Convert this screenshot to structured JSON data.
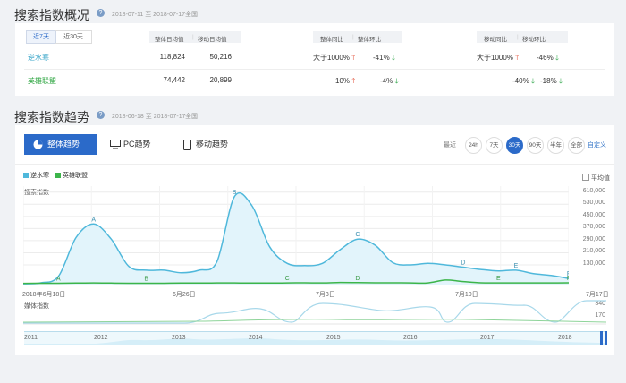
{
  "overview": {
    "title": "搜索指数概况",
    "date_range": "2018-07-11 至 2018-07-17",
    "region": "全国",
    "tabs": [
      "近7天",
      "近30天"
    ],
    "headers": {
      "avg": [
        "整体日均值",
        "移动日均值"
      ],
      "ratio1": [
        "整体同比",
        "整体环比"
      ],
      "ratio2": [
        "移动同比",
        "移动环比"
      ]
    },
    "rows": [
      {
        "name": "逆水寒",
        "name_color": "#3aa6c9",
        "overall_avg": "118,824",
        "mobile_avg": "50,216",
        "overall_yoy": "大于1000%",
        "overall_yoy_dir": "up",
        "overall_qoq": "-41%",
        "overall_qoq_dir": "down",
        "mobile_yoy": "大于1000%",
        "mobile_yoy_dir": "up",
        "mobile_qoq": "-46%",
        "mobile_qoq_dir": "down"
      },
      {
        "name": "英雄联盟",
        "name_color": "#27a33b",
        "overall_avg": "74,442",
        "mobile_avg": "20,899",
        "overall_yoy": "10%",
        "overall_yoy_dir": "up",
        "overall_qoq": "-4%",
        "overall_qoq_dir": "down",
        "mobile_yoy": "-40%",
        "mobile_yoy_dir": "down",
        "mobile_qoq": "-18%",
        "mobile_qoq_dir": "down"
      }
    ]
  },
  "trend": {
    "title": "搜索指数趋势",
    "date_range": "2018-06-18 至 2018-07-17",
    "region": "全国",
    "tabs": [
      "整体趋势",
      "PC趋势",
      "移动趋势"
    ],
    "range_label": "最近",
    "ranges": [
      "24h",
      "7天",
      "30天",
      "90天",
      "半年",
      "全部"
    ],
    "active_range": "30天",
    "custom_label": "自定义",
    "avg_label": "平均值"
  },
  "chart_data": [
    {
      "type": "area",
      "ylabel": "搜索指数",
      "yticks": [
        130000,
        210000,
        290000,
        370000,
        450000,
        530000,
        610000
      ],
      "ytick_labels": [
        "130,000",
        "210,000",
        "290,000",
        "370,000",
        "450,000",
        "530,000",
        "610,000"
      ],
      "ylim": [
        0,
        650000
      ],
      "x_tick_labels": [
        "2018年6月18日",
        "6月26日",
        "7月3日",
        "7月10日",
        "7月17日"
      ],
      "series": [
        {
          "name": "逆水寒",
          "color": "#4fb8db",
          "values": [
            5000,
            12000,
            55000,
            310000,
            400000,
            300000,
            120000,
            95000,
            95000,
            78000,
            95000,
            150000,
            580000,
            520000,
            250000,
            140000,
            125000,
            140000,
            230000,
            300000,
            260000,
            145000,
            130000,
            140000,
            130000,
            115000,
            100000,
            90000,
            95000,
            72000,
            60000,
            40000
          ]
        },
        {
          "name": "英雄联盟",
          "color": "#3cb54a",
          "values": [
            8000,
            9000,
            9000,
            10000,
            11000,
            10000,
            9000,
            9000,
            9000,
            10000,
            10000,
            11000,
            11000,
            10000,
            10000,
            11000,
            12000,
            11000,
            14000,
            13000,
            12000,
            12000,
            11000,
            11000,
            30000,
            20000,
            12000,
            11000,
            11000,
            11000,
            11000,
            12000
          ]
        }
      ],
      "annotations": [
        "A",
        "A",
        "B",
        "B",
        "C",
        "C",
        "D",
        "D",
        "E",
        "E",
        "F",
        "F"
      ]
    },
    {
      "type": "line",
      "ylabel": "媒体指数",
      "yticks": [
        170,
        340
      ],
      "ytick_labels": [
        "170",
        "340"
      ]
    },
    {
      "type": "area",
      "x_tick_labels": [
        "2011",
        "2012",
        "2013",
        "2014",
        "2015",
        "2016",
        "2017",
        "2018"
      ]
    }
  ]
}
